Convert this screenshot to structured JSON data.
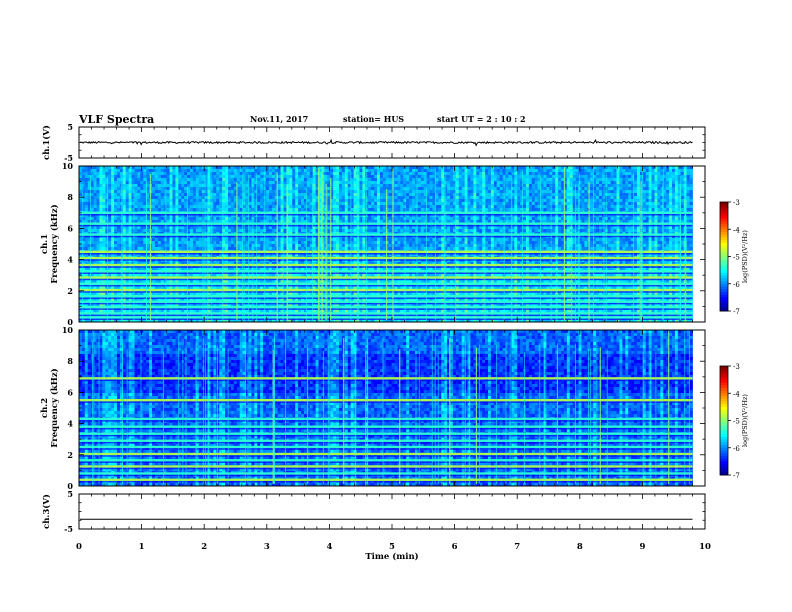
{
  "header": {
    "title": "VLF Spectra",
    "date": "Nov.11, 2017",
    "station": "station= HUS",
    "start": "start  UT =   2 : 10 : 2"
  },
  "chart_data": [
    {
      "type": "line",
      "ylabel": "ch.1(V)",
      "ylim": [
        -5,
        5
      ],
      "yticks": [
        5,
        -5
      ],
      "xlim": [
        0,
        10
      ],
      "series": [
        {
          "baseline": 0,
          "approx_amplitude": 0.3,
          "color": "#000000"
        }
      ]
    },
    {
      "type": "heatmap",
      "ylabel": "ch.1\nFrequency (kHz)",
      "ylim": [
        0,
        10
      ],
      "yticks": [
        0,
        2,
        4,
        6,
        8,
        10
      ],
      "xlim": [
        0,
        10
      ],
      "data_end_min": 9.8,
      "bands_khz": [
        0.3,
        0.55,
        0.95,
        1.3,
        1.65,
        2.05,
        2.45,
        2.85,
        3.25,
        3.65,
        4.1,
        4.5,
        5.6,
        6.3,
        7.0
      ],
      "strong_bands_khz": [
        2.05,
        2.85,
        3.65,
        4.1,
        4.5
      ],
      "colorbar": {
        "label": "log(PSD)(V²/Hz)",
        "ticks": [
          -3,
          -4,
          -5,
          -6,
          -7
        ],
        "range": [
          -7,
          -3
        ]
      }
    },
    {
      "type": "heatmap",
      "ylabel": "ch.2\nFrequency (kHz)",
      "ylim": [
        0,
        10
      ],
      "yticks": [
        0,
        2,
        4,
        6,
        8,
        10
      ],
      "xlim": [
        0,
        10
      ],
      "data_end_min": 9.8,
      "bands_khz": [
        0.4,
        0.8,
        1.25,
        1.65,
        2.05,
        2.5,
        2.9,
        3.35,
        3.8,
        4.3,
        5.5,
        6.9
      ],
      "strong_bands_khz": [
        0.4,
        1.25,
        2.05,
        5.5,
        6.9
      ],
      "colorbar": {
        "label": "log(PSD)(V²/Hz)",
        "ticks": [
          -3,
          -4,
          -5,
          -6,
          -7
        ],
        "range": [
          -7,
          -3
        ]
      }
    },
    {
      "type": "line",
      "ylabel": "ch.3(V)",
      "ylim": [
        -5,
        5
      ],
      "yticks": [
        5,
        -5
      ],
      "xlim": [
        0,
        10
      ],
      "xticks": [
        0,
        1,
        2,
        3,
        4,
        5,
        6,
        7,
        8,
        9,
        10
      ],
      "xlabel": "Time (min)",
      "series": [
        {
          "baseline": -2.2,
          "approx_amplitude": 0,
          "color": "#000000"
        }
      ]
    }
  ]
}
